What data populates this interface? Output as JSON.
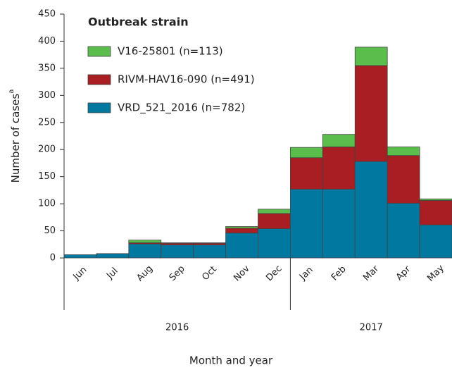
{
  "chart_data": {
    "type": "stacked_bar",
    "y_label": "Number of cases",
    "y_label_marker": "a",
    "x_label": "Month and year",
    "legend_title": "Outbreak strain",
    "categories": [
      "Jun",
      "Jul",
      "Aug",
      "Sep",
      "Oct",
      "Nov",
      "Dec",
      "Jan",
      "Feb",
      "Mar",
      "Apr",
      "May"
    ],
    "x_groups": [
      "2016",
      "2017"
    ],
    "series": [
      {
        "name": "VRD_521_2016 (n=782)",
        "color": "#00789f",
        "values": [
          6,
          8,
          26,
          24,
          24,
          46,
          54,
          127,
          127,
          178,
          101,
          61
        ]
      },
      {
        "name": "RIVM-HAV16-090 (n=491)",
        "color": "#a81e22",
        "values": [
          0,
          0,
          2,
          3,
          3,
          9,
          28,
          58,
          78,
          177,
          88,
          45
        ]
      },
      {
        "name": "V16-25801 (n=113)",
        "color": "#5bbd4b",
        "values": [
          0,
          0,
          5,
          1,
          1,
          3,
          8,
          19,
          23,
          34,
          16,
          3
        ]
      }
    ],
    "ylim": [
      0,
      450
    ],
    "yticks": [
      0,
      50,
      100,
      150,
      200,
      250,
      300,
      350,
      400,
      450
    ],
    "legend_position": "upper left"
  }
}
